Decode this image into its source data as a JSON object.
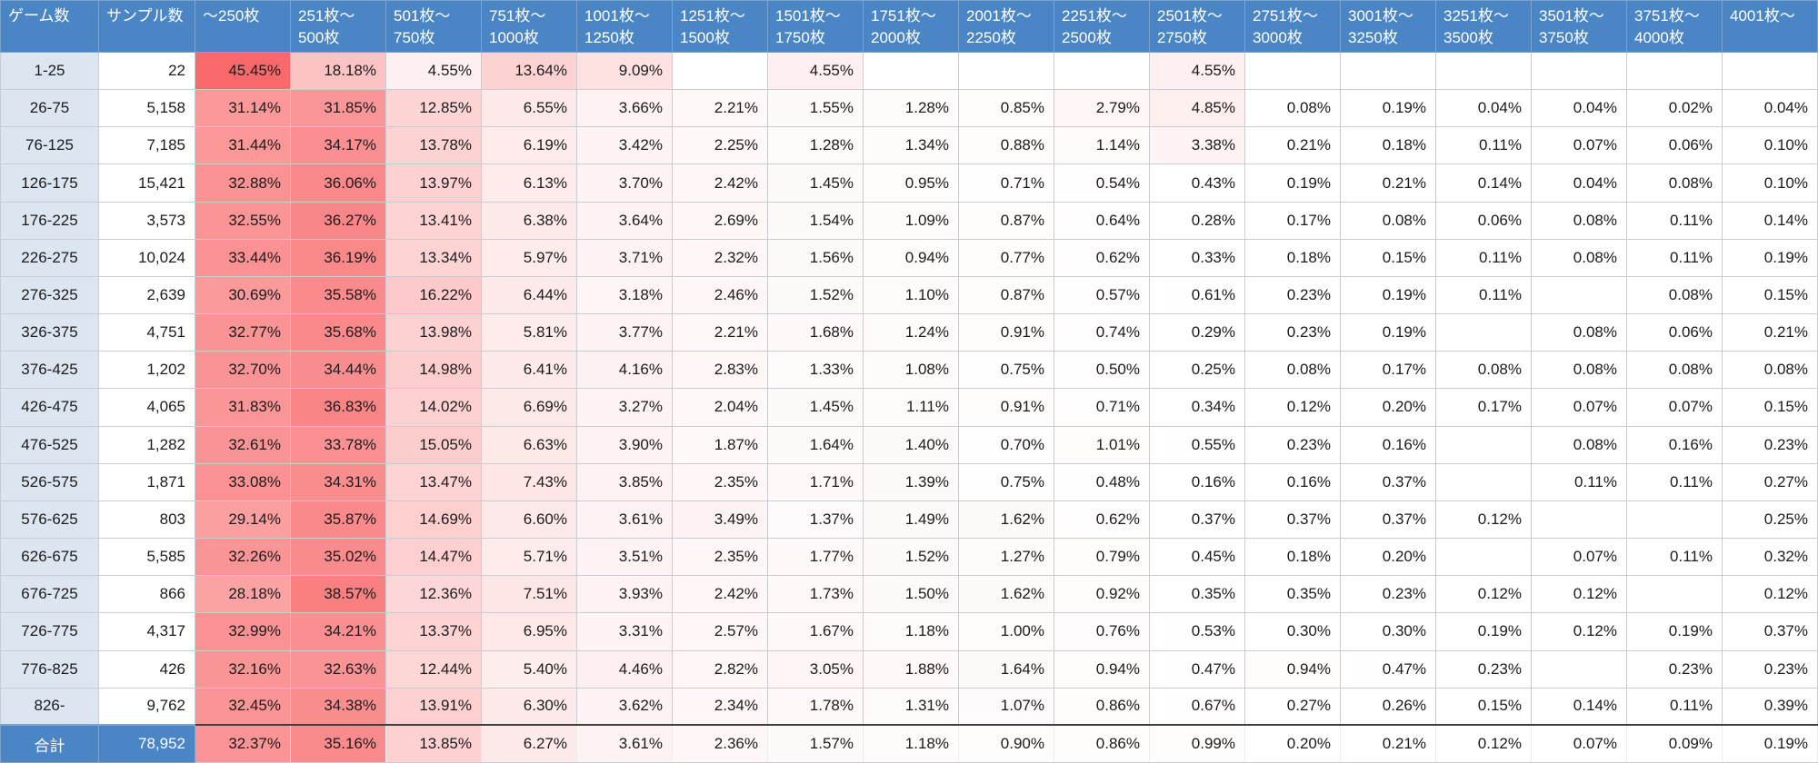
{
  "chart_data": {
    "type": "heatmap",
    "columns": {
      "row_header": "ゲーム数",
      "sample_header": "サンプル数",
      "bins": [
        "～250枚",
        "251枚～\n500枚",
        "501枚～\n750枚",
        "751枚～\n1000枚",
        "1001枚～\n1250枚",
        "1251枚～\n1500枚",
        "1501枚～\n1750枚",
        "1751枚～\n2000枚",
        "2001枚～\n2250枚",
        "2251枚～\n2500枚",
        "2501枚～\n2750枚",
        "2751枚～\n3000枚",
        "3001枚～\n3250枚",
        "3251枚～\n3500枚",
        "3501枚～\n3750枚",
        "3751枚～\n4000枚",
        "4001枚～"
      ]
    },
    "rows": [
      {
        "label": "1-25",
        "samples": "22",
        "values": [
          45.45,
          18.18,
          4.55,
          13.64,
          9.09,
          null,
          4.55,
          null,
          null,
          null,
          4.55,
          null,
          null,
          null,
          null,
          null,
          null
        ]
      },
      {
        "label": "26-75",
        "samples": "5,158",
        "values": [
          31.14,
          31.85,
          12.85,
          6.55,
          3.66,
          2.21,
          1.55,
          1.28,
          0.85,
          2.79,
          4.85,
          0.08,
          0.19,
          0.04,
          0.04,
          0.02,
          0.04
        ]
      },
      {
        "label": "76-125",
        "samples": "7,185",
        "values": [
          31.44,
          34.17,
          13.78,
          6.19,
          3.42,
          2.25,
          1.28,
          1.34,
          0.88,
          1.14,
          3.38,
          0.21,
          0.18,
          0.11,
          0.07,
          0.06,
          0.1
        ]
      },
      {
        "label": "126-175",
        "samples": "15,421",
        "values": [
          32.88,
          36.06,
          13.97,
          6.13,
          3.7,
          2.42,
          1.45,
          0.95,
          0.71,
          0.54,
          0.43,
          0.19,
          0.21,
          0.14,
          0.04,
          0.08,
          0.1
        ]
      },
      {
        "label": "176-225",
        "samples": "3,573",
        "values": [
          32.55,
          36.27,
          13.41,
          6.38,
          3.64,
          2.69,
          1.54,
          1.09,
          0.87,
          0.64,
          0.28,
          0.17,
          0.08,
          0.06,
          0.08,
          0.11,
          0.14
        ]
      },
      {
        "label": "226-275",
        "samples": "10,024",
        "values": [
          33.44,
          36.19,
          13.34,
          5.97,
          3.71,
          2.32,
          1.56,
          0.94,
          0.77,
          0.62,
          0.33,
          0.18,
          0.15,
          0.11,
          0.08,
          0.11,
          0.19
        ]
      },
      {
        "label": "276-325",
        "samples": "2,639",
        "values": [
          30.69,
          35.58,
          16.22,
          6.44,
          3.18,
          2.46,
          1.52,
          1.1,
          0.87,
          0.57,
          0.61,
          0.23,
          0.19,
          0.11,
          null,
          0.08,
          0.15
        ]
      },
      {
        "label": "326-375",
        "samples": "4,751",
        "values": [
          32.77,
          35.68,
          13.98,
          5.81,
          3.77,
          2.21,
          1.68,
          1.24,
          0.91,
          0.74,
          0.29,
          0.23,
          0.19,
          null,
          0.08,
          0.06,
          0.21
        ]
      },
      {
        "label": "376-425",
        "samples": "1,202",
        "values": [
          32.7,
          34.44,
          14.98,
          6.41,
          4.16,
          2.83,
          1.33,
          1.08,
          0.75,
          0.5,
          0.25,
          0.08,
          0.17,
          0.08,
          0.08,
          0.08,
          0.08
        ]
      },
      {
        "label": "426-475",
        "samples": "4,065",
        "values": [
          31.83,
          36.83,
          14.02,
          6.69,
          3.27,
          2.04,
          1.45,
          1.11,
          0.91,
          0.71,
          0.34,
          0.12,
          0.2,
          0.17,
          0.07,
          0.07,
          0.15
        ]
      },
      {
        "label": "476-525",
        "samples": "1,282",
        "values": [
          32.61,
          33.78,
          15.05,
          6.63,
          3.9,
          1.87,
          1.64,
          1.4,
          0.7,
          1.01,
          0.55,
          0.23,
          0.16,
          null,
          0.08,
          0.16,
          0.23
        ]
      },
      {
        "label": "526-575",
        "samples": "1,871",
        "values": [
          33.08,
          34.31,
          13.47,
          7.43,
          3.85,
          2.35,
          1.71,
          1.39,
          0.75,
          0.48,
          0.16,
          0.16,
          0.37,
          null,
          0.11,
          0.11,
          0.27
        ]
      },
      {
        "label": "576-625",
        "samples": "803",
        "values": [
          29.14,
          35.87,
          14.69,
          6.6,
          3.61,
          3.49,
          1.37,
          1.49,
          1.62,
          0.62,
          0.37,
          0.37,
          0.37,
          0.12,
          null,
          null,
          0.25
        ]
      },
      {
        "label": "626-675",
        "samples": "5,585",
        "values": [
          32.26,
          35.02,
          14.47,
          5.71,
          3.51,
          2.35,
          1.77,
          1.52,
          1.27,
          0.79,
          0.45,
          0.18,
          0.2,
          null,
          0.07,
          0.11,
          0.32
        ]
      },
      {
        "label": "676-725",
        "samples": "866",
        "values": [
          28.18,
          38.57,
          12.36,
          7.51,
          3.93,
          2.42,
          1.73,
          1.5,
          1.62,
          0.92,
          0.35,
          0.35,
          0.23,
          0.12,
          0.12,
          null,
          0.12
        ]
      },
      {
        "label": "726-775",
        "samples": "4,317",
        "values": [
          32.99,
          34.21,
          13.37,
          6.95,
          3.31,
          2.57,
          1.67,
          1.18,
          1.0,
          0.76,
          0.53,
          0.3,
          0.3,
          0.19,
          0.12,
          0.19,
          0.37
        ]
      },
      {
        "label": "776-825",
        "samples": "426",
        "values": [
          32.16,
          32.63,
          12.44,
          5.4,
          4.46,
          2.82,
          3.05,
          1.88,
          1.64,
          0.94,
          0.47,
          0.94,
          0.47,
          0.23,
          null,
          0.23,
          0.23
        ]
      },
      {
        "label": "826-",
        "samples": "9,762",
        "values": [
          32.45,
          34.38,
          13.91,
          6.3,
          3.62,
          2.34,
          1.78,
          1.31,
          1.07,
          0.86,
          0.67,
          0.27,
          0.26,
          0.15,
          0.14,
          0.11,
          0.39
        ]
      }
    ],
    "total": {
      "label": "合計",
      "samples": "78,952",
      "values": [
        32.37,
        35.16,
        13.85,
        6.27,
        3.61,
        2.36,
        1.57,
        1.18,
        0.9,
        0.86,
        0.99,
        0.2,
        0.21,
        0.12,
        0.07,
        0.09,
        0.19
      ]
    },
    "colors": {
      "header_bg": "#4a86c6",
      "header_text": "#ffffff",
      "row_label_bg": "#dce6f1",
      "grid_line": "#c9cdd2",
      "heat_min": "#ffffff",
      "heat_max": "#f8696b",
      "heat_max_value": 45.45
    },
    "value_format": "percent_2dp"
  }
}
